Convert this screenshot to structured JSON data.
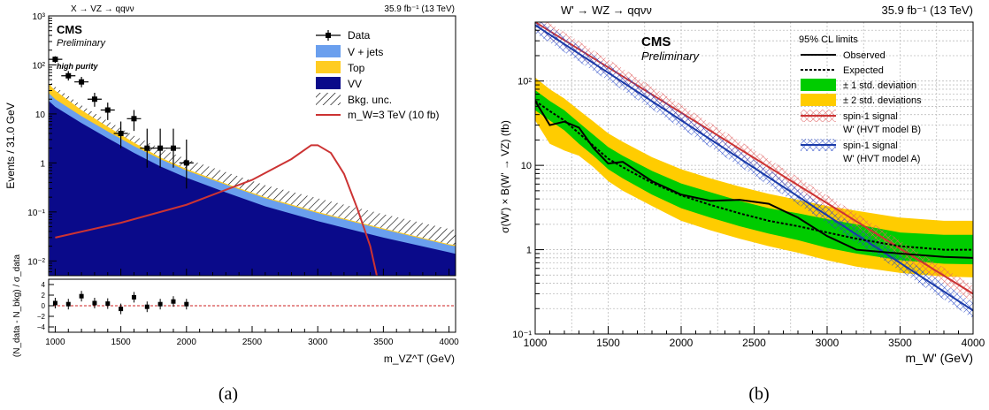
{
  "chart_data": [
    {
      "type": "area",
      "panel_caption": "(a)",
      "process_label": "X → VZ → qqνν",
      "lumi_label": "35.9 fb⁻¹ (13 TeV)",
      "cms_label": "CMS",
      "preliminary_label": "Preliminary",
      "category_label": "high purity",
      "ylabel": "Events / 31.0 GeV",
      "xlabel": "m_VZ^T (GeV)",
      "ratio_ylabel": "(N_data - N_bkg) / σ_data",
      "yscale": "log",
      "ylim": [
        0.005,
        1000
      ],
      "xlim": [
        950,
        4050
      ],
      "x_ticks": [
        "1000",
        "1500",
        "2000",
        "2500",
        "3000",
        "3500",
        "4000"
      ],
      "y_ticks": [
        "10⁻²",
        "10⁻¹",
        "1",
        "10",
        "10²",
        "10³"
      ],
      "ratio_ticks": [
        "4",
        "2",
        "0",
        "−2",
        "−4"
      ],
      "legend": [
        "Data",
        "V + jets",
        "Top",
        "VV",
        "Bkg. unc.",
        "m_W=3 TeV (10 fb)"
      ],
      "legend_position": "top-right",
      "colors": {
        "vjets": "#6a9fee",
        "top": "#ffcc22",
        "vv": "#0a0a8a",
        "signal": "#cc3333",
        "data": "#000000"
      },
      "background_x": [
        955,
        1000,
        1200,
        1400,
        1600,
        1800,
        2000,
        2300,
        2600,
        3000,
        3500,
        4000,
        4050
      ],
      "vv_stack": [
        18,
        14,
        6.5,
        3.2,
        1.6,
        0.85,
        0.5,
        0.25,
        0.13,
        0.065,
        0.03,
        0.015,
        0.014
      ],
      "vjets_stack": [
        26,
        20,
        9,
        4.4,
        2.2,
        1.2,
        0.7,
        0.36,
        0.19,
        0.095,
        0.044,
        0.021,
        0.02
      ],
      "top_stack": [
        40,
        30,
        12,
        5.5,
        2.6,
        1.3,
        0.75,
        0.38,
        0.2,
        0.1,
        0.046,
        0.022,
        0.021
      ],
      "unc_upper": [
        48,
        36,
        15,
        7.2,
        3.6,
        2,
        1.2,
        0.65,
        0.35,
        0.19,
        0.09,
        0.045,
        0.043
      ],
      "data_x": [
        1000,
        1100,
        1200,
        1300,
        1400,
        1500,
        1600,
        1700,
        1800,
        1900,
        2000
      ],
      "data_y": [
        130,
        60,
        45,
        20,
        12,
        4,
        8,
        2,
        2,
        2,
        1
      ],
      "data_err_low": [
        110,
        48,
        35,
        14,
        7.5,
        2,
        4.5,
        0.8,
        0.8,
        0.8,
        0.3
      ],
      "data_err_high": [
        150,
        75,
        57,
        27,
        17,
        7,
        12,
        5,
        5,
        5,
        3
      ],
      "signal_x": [
        1000,
        1500,
        2000,
        2500,
        2800,
        2950,
        3000,
        3100,
        3200,
        3300,
        3400,
        3450
      ],
      "signal_y": [
        0.03,
        0.06,
        0.14,
        0.45,
        1.2,
        2.3,
        2.3,
        1.6,
        0.6,
        0.12,
        0.02,
        0.005
      ],
      "pulls": [
        0.5,
        0.3,
        1.8,
        0.5,
        0.4,
        -0.6,
        1.6,
        -0.2,
        0.3,
        0.8,
        0.3
      ]
    },
    {
      "type": "line",
      "panel_caption": "(b)",
      "process_label": "W' → WZ → qqνν",
      "lumi_label": "35.9 fb⁻¹ (13 TeV)",
      "cms_label": "CMS",
      "preliminary_label": "Preliminary",
      "ylabel": "σ(W') × B(W' → VZ) (fb)",
      "xlabel": "m_W' (GeV)",
      "yscale": "log",
      "ylim": [
        0.1,
        500
      ],
      "xlim": [
        1000,
        4000
      ],
      "x_ticks": [
        "1000",
        "1500",
        "2000",
        "2500",
        "3000",
        "3500",
        "4000"
      ],
      "y_ticks": [
        "10⁻¹",
        "1",
        "10",
        "10²"
      ],
      "grid": true,
      "legend_title": "95% CL limits",
      "legend": [
        "Observed",
        "Expected",
        "± 1 std. deviation",
        "± 2 std. deviations",
        "spin-1 signal",
        "W' (HVT model B)",
        "spin-1 signal",
        "W' (HVT model A)"
      ],
      "legend_position": "top-right",
      "colors": {
        "band1": "#00cc00",
        "band2": "#ffcc00",
        "modelB": "#cc3333",
        "modelA": "#1a3aa8",
        "observed": "#000000"
      },
      "x": [
        1000,
        1100,
        1200,
        1300,
        1400,
        1500,
        1600,
        1800,
        2000,
        2200,
        2400,
        2600,
        2800,
        3000,
        3200,
        3500,
        3800,
        4000
      ],
      "observed": [
        58,
        30,
        33,
        28,
        16,
        10.5,
        11,
        6.5,
        4.5,
        3.8,
        3.9,
        3.5,
        2.4,
        1.45,
        1.0,
        0.9,
        0.82,
        0.8
      ],
      "expected": [
        58,
        44,
        34,
        24,
        17,
        12,
        9.5,
        6.2,
        4.4,
        3.4,
        2.7,
        2.2,
        1.9,
        1.6,
        1.35,
        1.1,
        1.0,
        1.0
      ],
      "band1_low": [
        45,
        34,
        26,
        18,
        13,
        9,
        7,
        4.5,
        3.1,
        2.4,
        1.9,
        1.55,
        1.3,
        1.05,
        0.9,
        0.75,
        0.68,
        0.67
      ],
      "band1_high": [
        78,
        58,
        45,
        32,
        23,
        16.5,
        13,
        8.6,
        6.1,
        4.8,
        3.8,
        3.1,
        2.7,
        2.3,
        2.0,
        1.6,
        1.5,
        1.5
      ],
      "band2_low": [
        34,
        18,
        15,
        13,
        9.5,
        6.5,
        5,
        3.3,
        2.2,
        1.7,
        1.35,
        1.1,
        0.92,
        0.75,
        0.63,
        0.53,
        0.48,
        0.47
      ],
      "band2_high": [
        110,
        80,
        62,
        45,
        33,
        24,
        19,
        12.5,
        9,
        7,
        5.6,
        4.6,
        3.9,
        3.3,
        2.9,
        2.4,
        2.2,
        2.2
      ],
      "model_x": [
        1000,
        4000
      ],
      "model_B": [
        500,
        0.3
      ],
      "model_A": [
        460,
        0.19
      ]
    }
  ]
}
